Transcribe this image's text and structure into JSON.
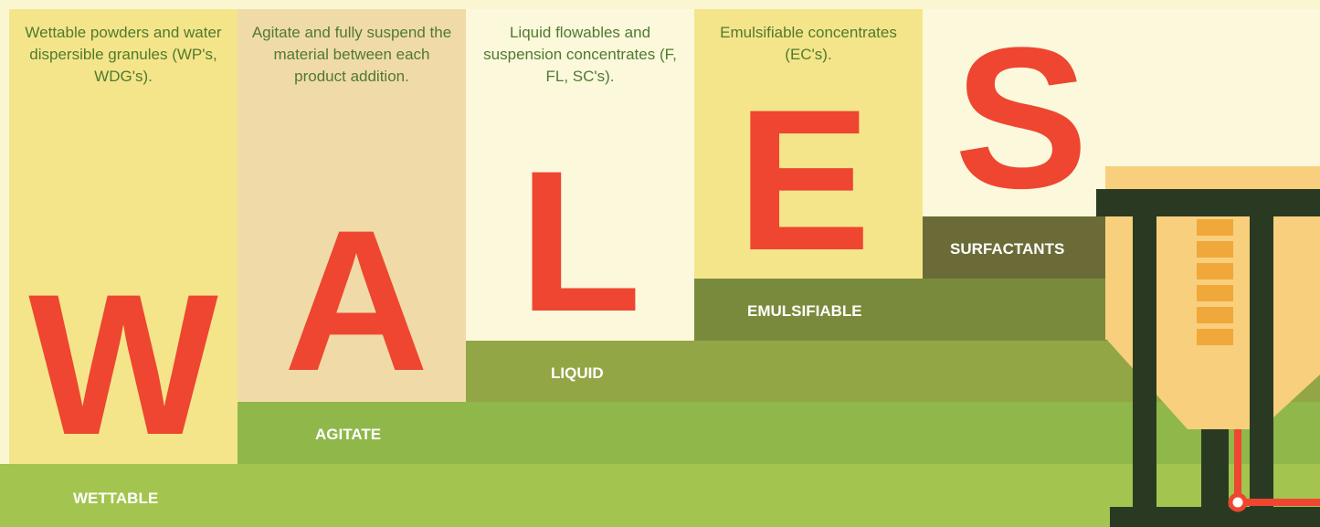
{
  "columns": [
    {
      "description": "Wettable powders and water dispersible granules (WP's, WDG's).",
      "letter": "W",
      "label": "WETTABLE"
    },
    {
      "description": "Agitate and fully suspend the material between each product addition.",
      "letter": "A",
      "label": "AGITATE"
    },
    {
      "description": "Liquid flowables and suspension concentrates (F, FL, SC's).",
      "letter": "L",
      "label": "LIQUID"
    },
    {
      "description": "Emulsifiable concentrates (EC's).",
      "letter": "E",
      "label": "EMULSIFIABLE"
    },
    {
      "letter": "S",
      "label": "SURFACTANTS"
    }
  ]
}
